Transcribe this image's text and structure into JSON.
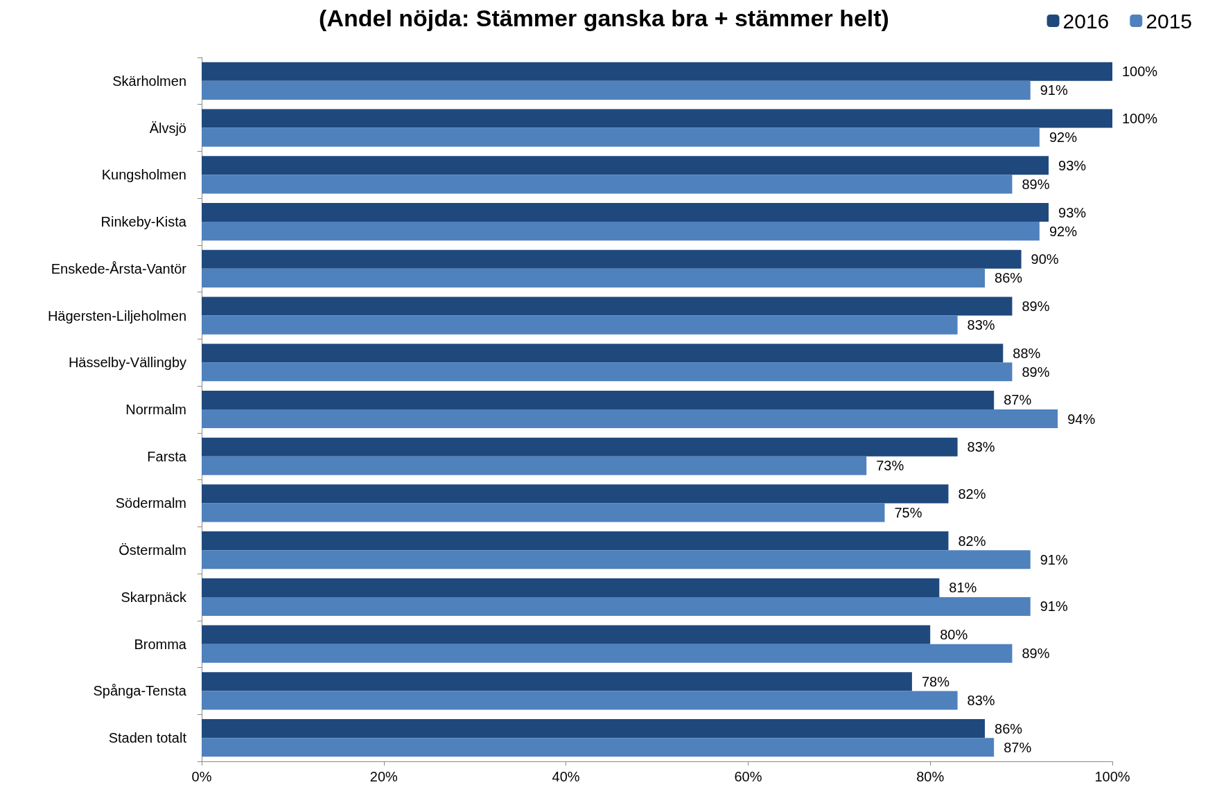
{
  "chart_data": {
    "type": "bar",
    "orientation": "horizontal",
    "title": "(Andel nöjda: Stämmer ganska bra + stämmer helt)",
    "categories": [
      "Skärholmen",
      "Älvsjö",
      "Kungsholmen",
      "Rinkeby-Kista",
      "Enskede-Årsta-Vantör",
      "Hägersten-Liljeholmen",
      "Hässelby-Vällingby",
      "Norrmalm",
      "Farsta",
      "Södermalm",
      "Östermalm",
      "Skarpnäck",
      "Bromma",
      "Spånga-Tensta",
      "Staden totalt"
    ],
    "series": [
      {
        "name": "2016",
        "color": "#1f497d",
        "values": [
          100,
          100,
          93,
          93,
          90,
          89,
          88,
          87,
          83,
          82,
          82,
          81,
          80,
          78,
          86
        ],
        "value_labels": [
          "100%",
          "100%",
          "93%",
          "93%",
          "90%",
          "89%",
          "88%",
          "87%",
          "83%",
          "82%",
          "82%",
          "81%",
          "80%",
          "78%",
          "86%"
        ]
      },
      {
        "name": "2015",
        "color": "#4f81bd",
        "values": [
          91,
          92,
          89,
          92,
          86,
          83,
          89,
          94,
          73,
          75,
          91,
          91,
          89,
          83,
          87
        ],
        "value_labels": [
          "91%",
          "92%",
          "89%",
          "92%",
          "86%",
          "83%",
          "89%",
          "94%",
          "73%",
          "75%",
          "91%",
          "91%",
          "89%",
          "83%",
          "87%"
        ]
      }
    ],
    "xlim": [
      0,
      100
    ],
    "xticks": [
      {
        "value": 0,
        "label": "0%"
      },
      {
        "value": 20,
        "label": "20%"
      },
      {
        "value": 40,
        "label": "40%"
      },
      {
        "value": 60,
        "label": "60%"
      },
      {
        "value": 80,
        "label": "80%"
      },
      {
        "value": 100,
        "label": "100%"
      }
    ],
    "grid": false,
    "legend": "top right"
  }
}
